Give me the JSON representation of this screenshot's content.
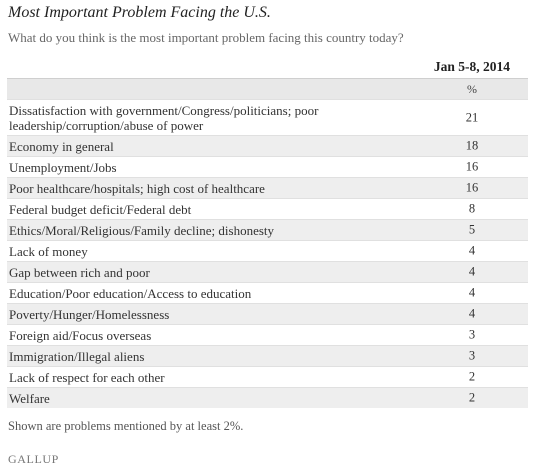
{
  "title": "Most Important Problem Facing the U.S.",
  "subtitle": "What do you think is the most important problem facing this country today?",
  "column_header": "Jan 5-8, 2014",
  "unit": "%",
  "footnote": "Shown are problems mentioned by at least 2%.",
  "logo": "GALLUP",
  "chart_data": {
    "type": "table",
    "title": "Most Important Problem Facing the U.S.",
    "subtitle": "What do you think is the most important problem facing this country today?",
    "columns": [
      "Jan 5-8, 2014"
    ],
    "unit": "%",
    "rows": [
      {
        "label": "Dissatisfaction with government/Congress/politicians; poor leadership/corruption/abuse of power",
        "value": 21
      },
      {
        "label": "Economy in general",
        "value": 18
      },
      {
        "label": "Unemployment/Jobs",
        "value": 16
      },
      {
        "label": "Poor healthcare/hospitals; high cost of healthcare",
        "value": 16
      },
      {
        "label": "Federal budget deficit/Federal debt",
        "value": 8
      },
      {
        "label": "Ethics/Moral/Religious/Family decline; dishonesty",
        "value": 5
      },
      {
        "label": "Lack of money",
        "value": 4
      },
      {
        "label": "Gap between rich and poor",
        "value": 4
      },
      {
        "label": "Education/Poor education/Access to education",
        "value": 4
      },
      {
        "label": "Poverty/Hunger/Homelessness",
        "value": 4
      },
      {
        "label": "Foreign aid/Focus overseas",
        "value": 3
      },
      {
        "label": "Immigration/Illegal aliens",
        "value": 3
      },
      {
        "label": "Lack of respect for each other",
        "value": 2
      },
      {
        "label": "Welfare",
        "value": 2
      }
    ]
  }
}
